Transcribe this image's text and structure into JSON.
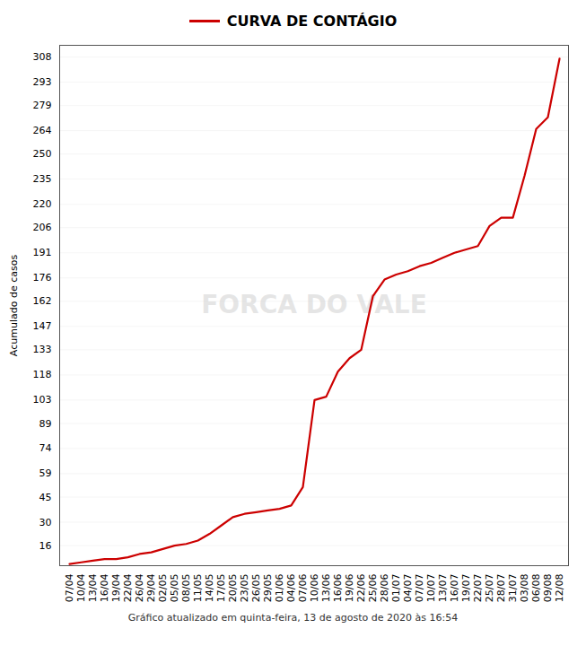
{
  "chart_data": {
    "type": "line",
    "title": "CURVA DE CONTÁGIO",
    "y_label": "Acumulado de casos",
    "caption": "Gráfico atualizado em quinta-feira, 13 de agosto de 2020 às 16:54",
    "annotations": [
      "FORCA DO VALE"
    ],
    "color": "#cc0000",
    "categories": [
      "07/04",
      "10/04",
      "13/04",
      "16/04",
      "19/04",
      "22/04",
      "26/04",
      "29/04",
      "02/05",
      "05/05",
      "08/05",
      "11/05",
      "14/05",
      "17/05",
      "20/05",
      "23/05",
      "26/05",
      "29/05",
      "01/06",
      "04/06",
      "07/06",
      "10/06",
      "13/06",
      "16/06",
      "19/06",
      "22/06",
      "25/06",
      "28/06",
      "01/07",
      "04/07",
      "07/07",
      "10/07",
      "13/07",
      "16/07",
      "19/07",
      "22/07",
      "25/07",
      "28/07",
      "31/07",
      "03/08",
      "06/08",
      "09/08",
      "12/08"
    ],
    "values": [
      5,
      6,
      7,
      8,
      8,
      9,
      11,
      12,
      14,
      16,
      17,
      19,
      23,
      28,
      33,
      35,
      36,
      37,
      38,
      40,
      51,
      103,
      105,
      120,
      128,
      133,
      165,
      175,
      178,
      180,
      183,
      185,
      188,
      191,
      193,
      195,
      207,
      212,
      212,
      237,
      265,
      272,
      307
    ],
    "ylim": [
      4,
      315
    ],
    "yticks": [
      16,
      30,
      45,
      59,
      74,
      89,
      103,
      118,
      133,
      147,
      162,
      176,
      191,
      206,
      220,
      235,
      250,
      264,
      279,
      293,
      308
    ],
    "grid": true
  }
}
